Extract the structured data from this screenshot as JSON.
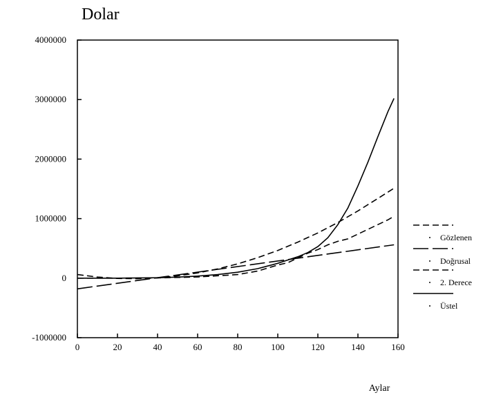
{
  "chart_data": {
    "type": "line",
    "title": "Dolar",
    "xlabel": "Aylar",
    "ylabel": "",
    "xlim": [
      0,
      160
    ],
    "ylim": [
      -1000000,
      4000000
    ],
    "x_ticks": [
      "0",
      "20",
      "40",
      "60",
      "80",
      "100",
      "120",
      "140",
      "160"
    ],
    "y_ticks": [
      "4000000",
      "3000000",
      "2000000",
      "1000000",
      "0",
      "-1000000"
    ],
    "grid": false,
    "legend_position": "right",
    "series": [
      {
        "name": "Gözlenen",
        "style": "dashed",
        "x": [
          0,
          20,
          40,
          60,
          80,
          90,
          100,
          105,
          110,
          115,
          120,
          125,
          130,
          135,
          140,
          145,
          150,
          155,
          158
        ],
        "y": [
          0,
          0,
          5000,
          20000,
          60000,
          120000,
          220000,
          260000,
          340000,
          420000,
          480000,
          560000,
          620000,
          660000,
          740000,
          820000,
          900000,
          980000,
          1040000
        ]
      },
      {
        "name": "Doğrusal",
        "style": "long-dash",
        "x": [
          0,
          158
        ],
        "y": [
          -180000,
          560000
        ]
      },
      {
        "name": "2. Derece",
        "style": "dashed",
        "x": [
          0,
          10,
          20,
          30,
          40,
          50,
          60,
          70,
          80,
          90,
          100,
          110,
          120,
          130,
          140,
          150,
          158
        ],
        "y": [
          60000,
          18000,
          -5000,
          -9000,
          5000,
          38000,
          88000,
          155000,
          240000,
          345000,
          465000,
          605000,
          760000,
          935000,
          1130000,
          1340000,
          1510000
        ]
      },
      {
        "name": "Üstel",
        "style": "solid",
        "x": [
          0,
          20,
          40,
          50,
          60,
          70,
          80,
          90,
          100,
          110,
          115,
          120,
          125,
          130,
          135,
          140,
          145,
          150,
          155,
          158
        ],
        "y": [
          0,
          0,
          7500,
          17500,
          35000,
          60000,
          100000,
          160000,
          250000,
          360000,
          430000,
          530000,
          680000,
          900000,
          1180000,
          1550000,
          1950000,
          2380000,
          2800000,
          3020000
        ]
      }
    ]
  },
  "colors": {
    "line": "#000000",
    "background": "#ffffff"
  }
}
